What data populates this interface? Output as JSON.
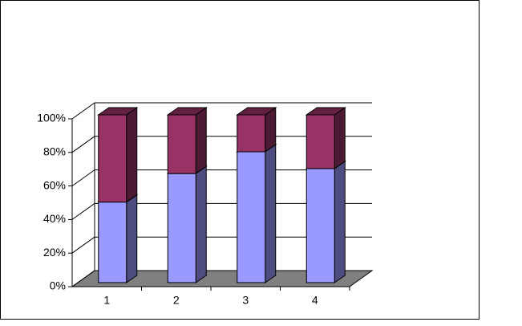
{
  "chart_data": {
    "type": "bar",
    "stacked": true,
    "three_d": true,
    "categories": [
      "1",
      "2",
      "3",
      "4"
    ],
    "series": [
      {
        "color": "#9999ff",
        "values": [
          48,
          65,
          78,
          68
        ]
      },
      {
        "color": "#993366",
        "values": [
          52,
          35,
          22,
          32
        ]
      }
    ],
    "ylim": [
      0,
      100
    ],
    "yticks": [
      {
        "value": 0,
        "label": "0%"
      },
      {
        "value": 20,
        "label": "20%"
      },
      {
        "value": 40,
        "label": "40%"
      },
      {
        "value": 60,
        "label": "60%"
      },
      {
        "value": 80,
        "label": "80%"
      },
      {
        "value": 100,
        "label": "100%"
      }
    ],
    "grid": true
  }
}
